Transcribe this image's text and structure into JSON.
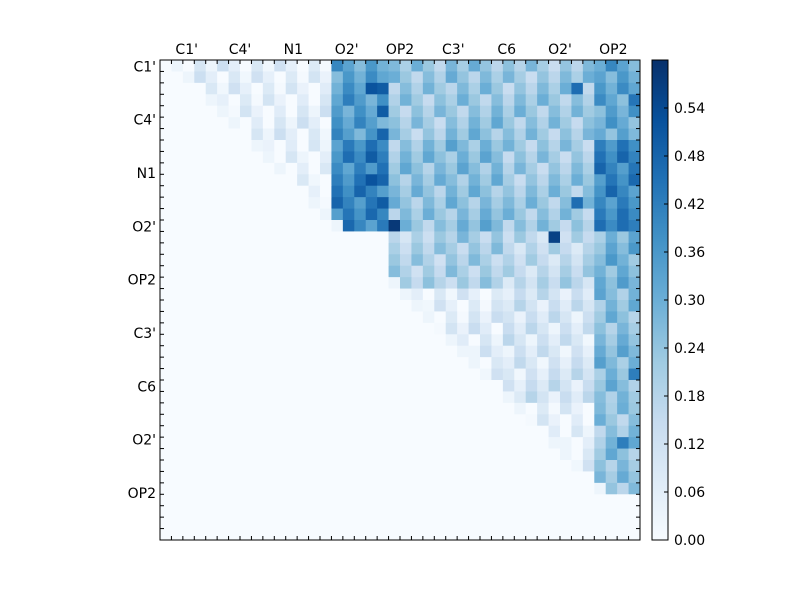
{
  "chart_data": {
    "type": "heatmap",
    "title": "",
    "xlabel": "",
    "ylabel": "",
    "x_tick_labels": [
      "C1'",
      "C4'",
      "N1",
      "O2'",
      "OP2",
      "C3'",
      "C6",
      "O2'",
      "OP2"
    ],
    "y_tick_labels": [
      "C1'",
      "C4'",
      "N1",
      "O2'",
      "OP2",
      "C3'",
      "C6",
      "O2'",
      "OP2"
    ],
    "colorbar": {
      "range": [
        0.0,
        0.6
      ],
      "ticks": [
        "0.00",
        "0.06",
        "0.12",
        "0.18",
        "0.24",
        "0.30",
        "0.36",
        "0.42",
        "0.48",
        "0.54"
      ],
      "colormap": "Blues"
    },
    "grid": false,
    "n": 42,
    "matrix_note": "upper triangle populated, lower triangle zero",
    "blocks": [
      {
        "rows": [
          0,
          7
        ],
        "cols": [
          15,
          20
        ],
        "level": 0.34
      },
      {
        "rows": [
          0,
          7
        ],
        "cols": [
          20,
          25
        ],
        "level": 0.22
      },
      {
        "rows": [
          0,
          7
        ],
        "cols": [
          25,
          30
        ],
        "level": 0.24
      },
      {
        "rows": [
          0,
          7
        ],
        "cols": [
          30,
          38
        ],
        "level": 0.22
      },
      {
        "rows": [
          0,
          7
        ],
        "cols": [
          38,
          42
        ],
        "level": 0.32
      },
      {
        "rows": [
          7,
          15
        ],
        "cols": [
          15,
          20
        ],
        "level": 0.4
      },
      {
        "rows": [
          7,
          15
        ],
        "cols": [
          20,
          25
        ],
        "level": 0.24
      },
      {
        "rows": [
          7,
          15
        ],
        "cols": [
          25,
          30
        ],
        "level": 0.26
      },
      {
        "rows": [
          7,
          15
        ],
        "cols": [
          30,
          38
        ],
        "level": 0.22
      },
      {
        "rows": [
          7,
          15
        ],
        "cols": [
          38,
          42
        ],
        "level": 0.4
      },
      {
        "rows": [
          15,
          20
        ],
        "cols": [
          20,
          25
        ],
        "level": 0.18
      },
      {
        "rows": [
          15,
          20
        ],
        "cols": [
          25,
          30
        ],
        "level": 0.2
      },
      {
        "rows": [
          15,
          20
        ],
        "cols": [
          30,
          38
        ],
        "level": 0.16
      },
      {
        "rows": [
          15,
          20
        ],
        "cols": [
          38,
          42
        ],
        "level": 0.28
      },
      {
        "rows": [
          20,
          30
        ],
        "cols": [
          20,
          30
        ],
        "level": 0.06
      },
      {
        "rows": [
          20,
          30
        ],
        "cols": [
          30,
          38
        ],
        "level": 0.1
      },
      {
        "rows": [
          20,
          30
        ],
        "cols": [
          38,
          42
        ],
        "level": 0.26
      },
      {
        "rows": [
          30,
          38
        ],
        "cols": [
          30,
          38
        ],
        "level": 0.04
      },
      {
        "rows": [
          30,
          38
        ],
        "cols": [
          38,
          42
        ],
        "level": 0.24
      },
      {
        "rows": [
          0,
          7
        ],
        "cols": [
          0,
          15
        ],
        "level": 0.05
      },
      {
        "rows": [
          7,
          15
        ],
        "cols": [
          7,
          15
        ],
        "level": 0.03
      }
    ],
    "hotspots": [
      {
        "row": 2,
        "col": 18,
        "value": 0.52
      },
      {
        "row": 2,
        "col": 19,
        "value": 0.5
      },
      {
        "row": 4,
        "col": 19,
        "value": 0.5
      },
      {
        "row": 6,
        "col": 19,
        "value": 0.48
      },
      {
        "row": 8,
        "col": 18,
        "value": 0.5
      },
      {
        "row": 10,
        "col": 18,
        "value": 0.52
      },
      {
        "row": 12,
        "col": 19,
        "value": 0.5
      },
      {
        "row": 14,
        "col": 20,
        "value": 0.58
      },
      {
        "row": 15,
        "col": 34,
        "value": 0.56
      },
      {
        "row": 12,
        "col": 36,
        "value": 0.46
      },
      {
        "row": 11,
        "col": 39,
        "value": 0.48
      },
      {
        "row": 14,
        "col": 40,
        "value": 0.46
      },
      {
        "row": 27,
        "col": 41,
        "value": 0.42
      },
      {
        "row": 33,
        "col": 40,
        "value": 0.42
      },
      {
        "row": 3,
        "col": 41,
        "value": 0.44
      },
      {
        "row": 2,
        "col": 36,
        "value": 0.46
      }
    ]
  }
}
